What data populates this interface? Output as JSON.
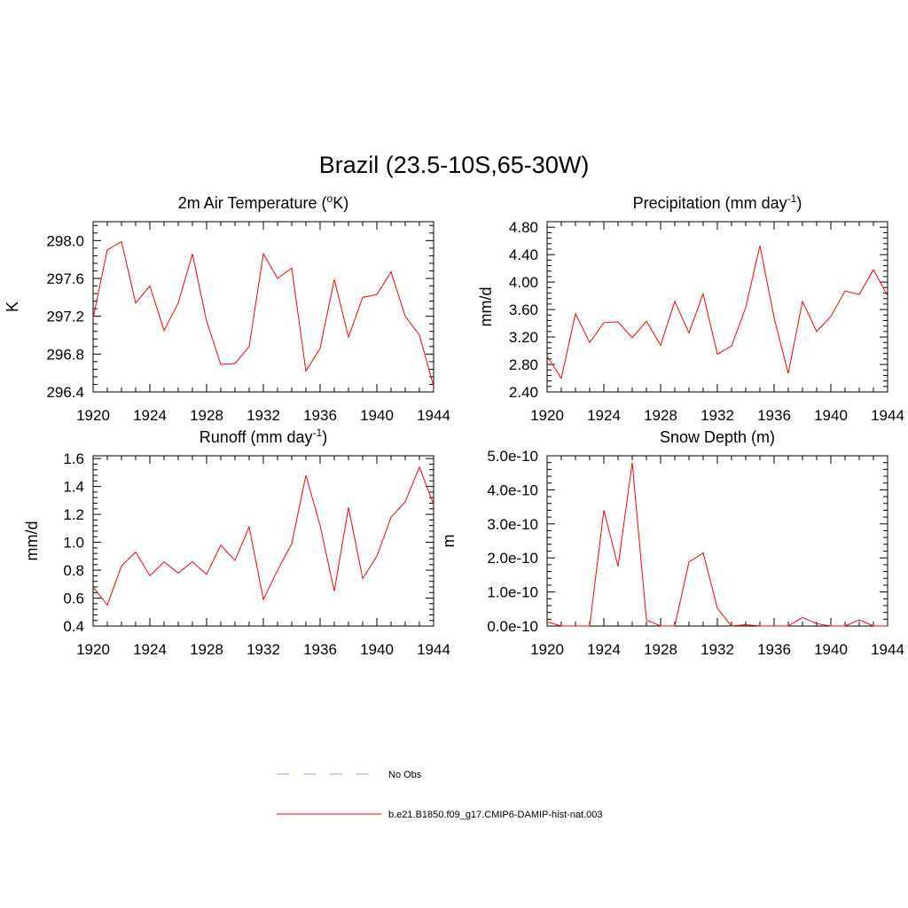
{
  "figure": {
    "title": "Brazil (23.5-10S,65-30W)"
  },
  "legend": {
    "items": [
      {
        "label": "No Obs",
        "color": "#9999ff",
        "dash": "dashed"
      },
      {
        "label": "b.e21.B1850.f09_g17.CMIP6-DAMIP-hist-nat.003",
        "color": "#ff0000",
        "dash": "solid"
      }
    ]
  },
  "chart_data": [
    {
      "type": "line",
      "title_main": "2m Air Temperature (",
      "title_sup": "o",
      "title_rest": "K)",
      "ylabel": "K",
      "xlim": [
        1920,
        1944
      ],
      "ylim": [
        296.4,
        298.2
      ],
      "xticks": [
        "1920",
        "1924",
        "1928",
        "1932",
        "1936",
        "1940",
        "1944"
      ],
      "yticks": [
        296.4,
        296.8,
        297.2,
        297.6,
        298.0
      ],
      "ytick_labels": [
        "296.4",
        "296.8",
        "297.2",
        "297.6",
        "298.0"
      ],
      "x": [
        1920,
        1921,
        1922,
        1923,
        1924,
        1925,
        1926,
        1927,
        1928,
        1929,
        1930,
        1931,
        1932,
        1933,
        1934,
        1935,
        1936,
        1937,
        1938,
        1939,
        1940,
        1941,
        1942,
        1943,
        1944
      ],
      "series": [
        {
          "color": "#ff0000",
          "values": [
            297.18,
            297.9,
            297.99,
            297.34,
            297.52,
            297.05,
            297.34,
            297.86,
            297.15,
            296.69,
            296.7,
            296.88,
            297.86,
            297.6,
            297.71,
            296.62,
            296.86,
            297.59,
            296.98,
            297.4,
            297.43,
            297.67,
            297.2,
            297.0,
            296.46
          ]
        }
      ]
    },
    {
      "type": "line",
      "title_main": "Precipitation (mm day",
      "title_sup": "-1",
      "title_rest": ")",
      "ylabel": "mm/d",
      "xlim": [
        1920,
        1944
      ],
      "ylim": [
        2.4,
        4.88
      ],
      "xticks": [
        "1920",
        "1924",
        "1928",
        "1932",
        "1936",
        "1940",
        "1944"
      ],
      "yticks": [
        2.4,
        2.8,
        3.2,
        3.6,
        4.0,
        4.4,
        4.8
      ],
      "ytick_labels": [
        "2.40",
        "2.80",
        "3.20",
        "3.60",
        "4.00",
        "4.40",
        "4.80"
      ],
      "x": [
        1920,
        1921,
        1922,
        1923,
        1924,
        1925,
        1926,
        1927,
        1928,
        1929,
        1930,
        1931,
        1932,
        1933,
        1934,
        1935,
        1936,
        1937,
        1938,
        1939,
        1940,
        1941,
        1942,
        1943,
        1944
      ],
      "series": [
        {
          "color": "#ff0000",
          "values": [
            2.92,
            2.6,
            3.54,
            3.12,
            3.41,
            3.42,
            3.19,
            3.43,
            3.08,
            3.72,
            3.26,
            3.83,
            2.95,
            3.07,
            3.63,
            4.53,
            3.48,
            2.67,
            3.72,
            3.28,
            3.5,
            3.87,
            3.82,
            4.18,
            3.8
          ]
        }
      ]
    },
    {
      "type": "line",
      "title_main": "Runoff (mm day",
      "title_sup": "-1",
      "title_rest": ")",
      "ylabel": "mm/d",
      "xlim": [
        1920,
        1944
      ],
      "ylim": [
        0.4,
        1.62
      ],
      "xticks": [
        "1920",
        "1924",
        "1928",
        "1932",
        "1936",
        "1940",
        "1944"
      ],
      "yticks": [
        0.4,
        0.6,
        0.8,
        1.0,
        1.2,
        1.4,
        1.6
      ],
      "ytick_labels": [
        "0.4",
        "0.6",
        "0.8",
        "1.0",
        "1.2",
        "1.4",
        "1.6"
      ],
      "x": [
        1920,
        1921,
        1922,
        1923,
        1924,
        1925,
        1926,
        1927,
        1928,
        1929,
        1930,
        1931,
        1932,
        1933,
        1934,
        1935,
        1936,
        1937,
        1938,
        1939,
        1940,
        1941,
        1942,
        1943,
        1944
      ],
      "series": [
        {
          "color": "#ff0000",
          "values": [
            0.68,
            0.55,
            0.83,
            0.93,
            0.76,
            0.86,
            0.78,
            0.86,
            0.77,
            0.98,
            0.87,
            1.11,
            0.59,
            0.8,
            0.99,
            1.48,
            1.12,
            0.65,
            1.25,
            0.74,
            0.9,
            1.18,
            1.29,
            1.54,
            1.27
          ]
        }
      ]
    },
    {
      "type": "line",
      "title_main": "Snow Depth (m)",
      "title_sup": "",
      "title_rest": "",
      "ylabel": "m",
      "xlim": [
        1920,
        1944
      ],
      "ylim": [
        0,
        5e-10
      ],
      "xticks": [
        "1920",
        "1924",
        "1928",
        "1932",
        "1936",
        "1940",
        "1944"
      ],
      "yticks": [
        0,
        1e-10,
        2e-10,
        3e-10,
        4e-10,
        5e-10
      ],
      "ytick_labels": [
        "0.0e-10",
        "1.0e-10",
        "2.0e-10",
        "3.0e-10",
        "4.0e-10",
        "5.0e-10"
      ],
      "x": [
        1920,
        1921,
        1922,
        1923,
        1924,
        1925,
        1926,
        1927,
        1928,
        1929,
        1930,
        1931,
        1932,
        1933,
        1934,
        1935,
        1936,
        1937,
        1938,
        1939,
        1940,
        1941,
        1942,
        1943,
        1944
      ],
      "series": [
        {
          "color": "#ff0000",
          "values": [
            1.2e-11,
            0,
            0,
            0,
            3.4e-10,
            1.75e-10,
            4.8e-10,
            1.8e-11,
            0,
            0,
            1.88e-10,
            2.15e-10,
            5.2e-11,
            0,
            4e-12,
            0,
            0,
            0,
            2.5e-11,
            7e-12,
            0,
            0,
            1.8e-11,
            0,
            0
          ]
        }
      ]
    }
  ]
}
